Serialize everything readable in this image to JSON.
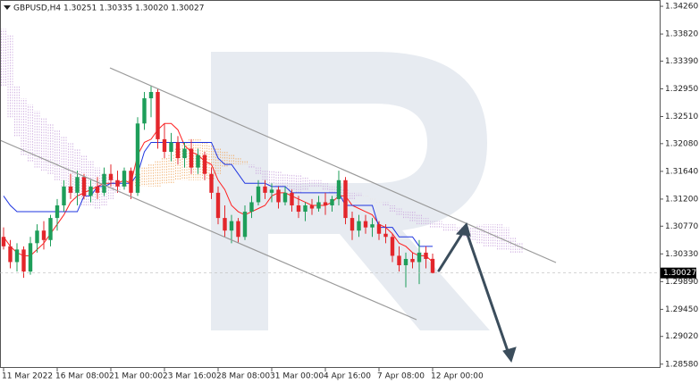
{
  "chart_data": {
    "type": "candlestick",
    "title": "GBPUSD,H4  1.30251 1.30335 1.30020 1.30027",
    "candles": {
      "open": [
        1.306,
        1.3045,
        1.302,
        1.304,
        1.3005,
        1.305,
        1.307,
        1.3055,
        1.309,
        1.311,
        1.314,
        1.313,
        1.3155,
        1.3125,
        1.314,
        1.313,
        1.316,
        1.315,
        1.314,
        1.3165,
        1.313,
        1.324,
        1.328,
        1.329,
        1.3215,
        1.3195,
        1.321,
        1.3185,
        1.32,
        1.317,
        1.319,
        1.316,
        1.313,
        1.309,
        1.307,
        1.3085,
        1.306,
        1.31,
        1.3115,
        1.314,
        1.313,
        1.3135,
        1.3115,
        1.313,
        1.311,
        1.31,
        1.311,
        1.3105,
        1.3115,
        1.311,
        1.312,
        1.315,
        1.309,
        1.307,
        1.3085,
        1.3075,
        1.308,
        1.3065,
        1.306,
        1.303,
        1.3015,
        1.3025,
        1.302,
        1.3035,
        1.30251
      ],
      "high": [
        1.3075,
        1.3055,
        1.305,
        1.3045,
        1.306,
        1.308,
        1.3085,
        1.3095,
        1.312,
        1.315,
        1.316,
        1.3165,
        1.316,
        1.315,
        1.3155,
        1.317,
        1.3175,
        1.3165,
        1.317,
        1.317,
        1.325,
        1.329,
        1.33,
        1.3295,
        1.324,
        1.3225,
        1.322,
        1.321,
        1.3215,
        1.32,
        1.3195,
        1.317,
        1.314,
        1.311,
        1.3095,
        1.309,
        1.311,
        1.3125,
        1.315,
        1.315,
        1.3145,
        1.314,
        1.314,
        1.3135,
        1.3125,
        1.3115,
        1.312,
        1.3125,
        1.313,
        1.3125,
        1.3165,
        1.3155,
        1.31,
        1.3095,
        1.3095,
        1.309,
        1.3085,
        1.308,
        1.3065,
        1.3045,
        1.3035,
        1.3035,
        1.3055,
        1.3045,
        1.30335
      ],
      "low": [
        1.304,
        1.301,
        1.3005,
        1.2995,
        1.3,
        1.3035,
        1.304,
        1.3045,
        1.307,
        1.31,
        1.312,
        1.311,
        1.312,
        1.3115,
        1.312,
        1.3125,
        1.314,
        1.313,
        1.3135,
        1.312,
        1.3125,
        1.323,
        1.325,
        1.32,
        1.3185,
        1.318,
        1.3175,
        1.317,
        1.316,
        1.316,
        1.315,
        1.312,
        1.308,
        1.306,
        1.305,
        1.305,
        1.3055,
        1.309,
        1.311,
        1.312,
        1.3115,
        1.3105,
        1.311,
        1.31,
        1.309,
        1.3085,
        1.3095,
        1.31,
        1.3095,
        1.31,
        1.311,
        1.308,
        1.3055,
        1.306,
        1.3065,
        1.306,
        1.3055,
        1.305,
        1.302,
        1.3005,
        1.298,
        1.301,
        1.2985,
        1.301,
        1.3002
      ],
      "close": [
        1.3045,
        1.302,
        1.304,
        1.3005,
        1.305,
        1.307,
        1.3055,
        1.309,
        1.311,
        1.314,
        1.313,
        1.3155,
        1.3125,
        1.314,
        1.313,
        1.316,
        1.315,
        1.314,
        1.3165,
        1.313,
        1.324,
        1.328,
        1.329,
        1.3215,
        1.3195,
        1.321,
        1.3185,
        1.32,
        1.317,
        1.319,
        1.316,
        1.313,
        1.309,
        1.307,
        1.3085,
        1.306,
        1.31,
        1.3115,
        1.314,
        1.313,
        1.3135,
        1.3115,
        1.313,
        1.311,
        1.31,
        1.311,
        1.3105,
        1.3115,
        1.311,
        1.312,
        1.315,
        1.309,
        1.307,
        1.3085,
        1.3075,
        1.308,
        1.3065,
        1.306,
        1.303,
        1.3015,
        1.3025,
        1.302,
        1.3035,
        1.3025,
        1.30027
      ],
      "up_color": "#1e9e5a",
      "down_color": "#e3262b"
    },
    "series": [
      {
        "color": "#ff2020",
        "values": [
          1.306,
          1.3045,
          1.3035,
          1.303,
          1.303,
          1.304,
          1.305,
          1.3065,
          1.308,
          1.3095,
          1.3115,
          1.3125,
          1.313,
          1.3135,
          1.314,
          1.3145,
          1.3145,
          1.3145,
          1.315,
          1.3145,
          1.319,
          1.321,
          1.3215,
          1.323,
          1.324,
          1.324,
          1.323,
          1.3205,
          1.3195,
          1.319,
          1.318,
          1.3175,
          1.315,
          1.3135,
          1.311,
          1.31,
          1.3095,
          1.31,
          1.3105,
          1.311,
          1.3125,
          1.313,
          1.313,
          1.3125,
          1.312,
          1.3115,
          1.311,
          1.311,
          1.311,
          1.3115,
          1.3125,
          1.3125,
          1.311,
          1.3105,
          1.31,
          1.3095,
          1.308,
          1.3075,
          1.3065,
          1.305,
          1.3045,
          1.3035,
          1.303,
          1.303,
          1.302
        ]
      },
      {
        "color": "#1f35e0",
        "values": [
          1.3125,
          1.311,
          1.31,
          1.31,
          1.31,
          1.31,
          1.31,
          1.31,
          1.31,
          1.31,
          1.31,
          1.31,
          1.3125,
          1.3125,
          1.314,
          1.314,
          1.3145,
          1.3145,
          1.3145,
          1.3145,
          1.316,
          1.3195,
          1.321,
          1.321,
          1.321,
          1.321,
          1.321,
          1.321,
          1.321,
          1.321,
          1.321,
          1.321,
          1.3185,
          1.3175,
          1.3175,
          1.316,
          1.3145,
          1.3145,
          1.3145,
          1.3145,
          1.314,
          1.314,
          1.314,
          1.313,
          1.313,
          1.313,
          1.313,
          1.313,
          1.313,
          1.313,
          1.313,
          1.311,
          1.311,
          1.311,
          1.311,
          1.311,
          1.3075,
          1.3075,
          1.3075,
          1.306,
          1.306,
          1.306,
          1.3045,
          1.3045,
          1.3045
        ]
      }
    ],
    "cloud": {
      "up_color": "#f0a860",
      "down_color": "#c9a3dc",
      "spans": [
        {
          "values": [
            1.33,
            1.325,
            1.322,
            1.319,
            1.318,
            1.317,
            1.3165,
            1.316,
            1.315,
            1.314,
            1.313,
            1.312,
            1.311,
            1.311,
            1.3105,
            1.311,
            1.312,
            1.313,
            1.314,
            1.315,
            1.316,
            1.317,
            1.3175,
            1.318,
            1.3185,
            1.319,
            1.32,
            1.321,
            1.3215,
            1.3215,
            1.321,
            1.3205,
            1.32,
            1.3195,
            1.319,
            1.3185,
            1.318,
            1.317,
            1.316,
            1.315,
            1.3145,
            1.314,
            1.314,
            1.3135,
            1.313,
            1.3135,
            1.314,
            1.314,
            1.3135,
            1.313,
            1.3125,
            1.312,
            1.312,
            1.3125,
            1.3125,
            1.312,
            1.3115,
            1.311,
            1.31,
            1.3095,
            1.309,
            1.3085,
            1.308,
            1.308,
            1.3075,
            1.3075,
            1.307,
            1.307,
            1.3065,
            1.306,
            1.3055,
            1.305,
            1.3045,
            1.3045,
            1.304,
            1.304,
            1.3035,
            1.3035
          ]
        },
        {
          "values": [
            1.339,
            1.338,
            1.33,
            1.328,
            1.327,
            1.326,
            1.325,
            1.324,
            1.323,
            1.322,
            1.321,
            1.32,
            1.319,
            1.318,
            1.317,
            1.316,
            1.3155,
            1.315,
            1.3145,
            1.3145,
            1.314,
            1.314,
            1.314,
            1.314,
            1.3145,
            1.3145,
            1.315,
            1.315,
            1.315,
            1.315,
            1.315,
            1.315,
            1.316,
            1.317,
            1.3175,
            1.3175,
            1.3175,
            1.3175,
            1.317,
            1.3165,
            1.3165,
            1.3165,
            1.316,
            1.316,
            1.316,
            1.3155,
            1.315,
            1.315,
            1.3145,
            1.314,
            1.314,
            1.3135,
            1.313,
            1.313,
            1.3125,
            1.312,
            1.3115,
            1.3115,
            1.311,
            1.3105,
            1.31,
            1.31,
            1.3095,
            1.309,
            1.3085,
            1.3085,
            1.308,
            1.308,
            1.3075,
            1.3075,
            1.3075,
            1.308,
            1.308,
            1.308,
            1.308,
            1.3075,
            1.306,
            1.305
          ]
        }
      ]
    },
    "last_price": 1.30027,
    "ylim": [
      1.2852,
      1.3436
    ],
    "yticks": [
      {
        "value": 1.3426,
        "label": "1.34260"
      },
      {
        "value": 1.3382,
        "label": "1.33820"
      },
      {
        "value": 1.3339,
        "label": "1.33390"
      },
      {
        "value": 1.3295,
        "label": "1.32950"
      },
      {
        "value": 1.3251,
        "label": "1.32510"
      },
      {
        "value": 1.3208,
        "label": "1.32080"
      },
      {
        "value": 1.3164,
        "label": "1.31640"
      },
      {
        "value": 1.312,
        "label": "1.31200"
      },
      {
        "value": 1.3077,
        "label": "1.30770"
      },
      {
        "value": 1.3033,
        "label": "1.30330"
      },
      {
        "value": 1.2989,
        "label": "1.29890"
      },
      {
        "value": 1.2945,
        "label": "1.29450"
      },
      {
        "value": 1.2902,
        "label": "1.29020"
      },
      {
        "value": 1.2858,
        "label": "1.28580"
      }
    ],
    "xticks": [
      {
        "value": 0,
        "label": "11 Mar 2022"
      },
      {
        "value": 8,
        "label": "16 Mar 08:00"
      },
      {
        "value": 16,
        "label": "21 Mar 00:00"
      },
      {
        "value": 24,
        "label": "23 Mar 16:00"
      },
      {
        "value": 32,
        "label": "28 Mar 08:00"
      },
      {
        "value": 40,
        "label": "31 Mar 00:00"
      },
      {
        "value": 48,
        "label": "4 Apr 16:00"
      },
      {
        "value": 56,
        "label": "7 Apr 08:00"
      },
      {
        "value": 64,
        "label": "12 Apr 00:00"
      }
    ]
  }
}
